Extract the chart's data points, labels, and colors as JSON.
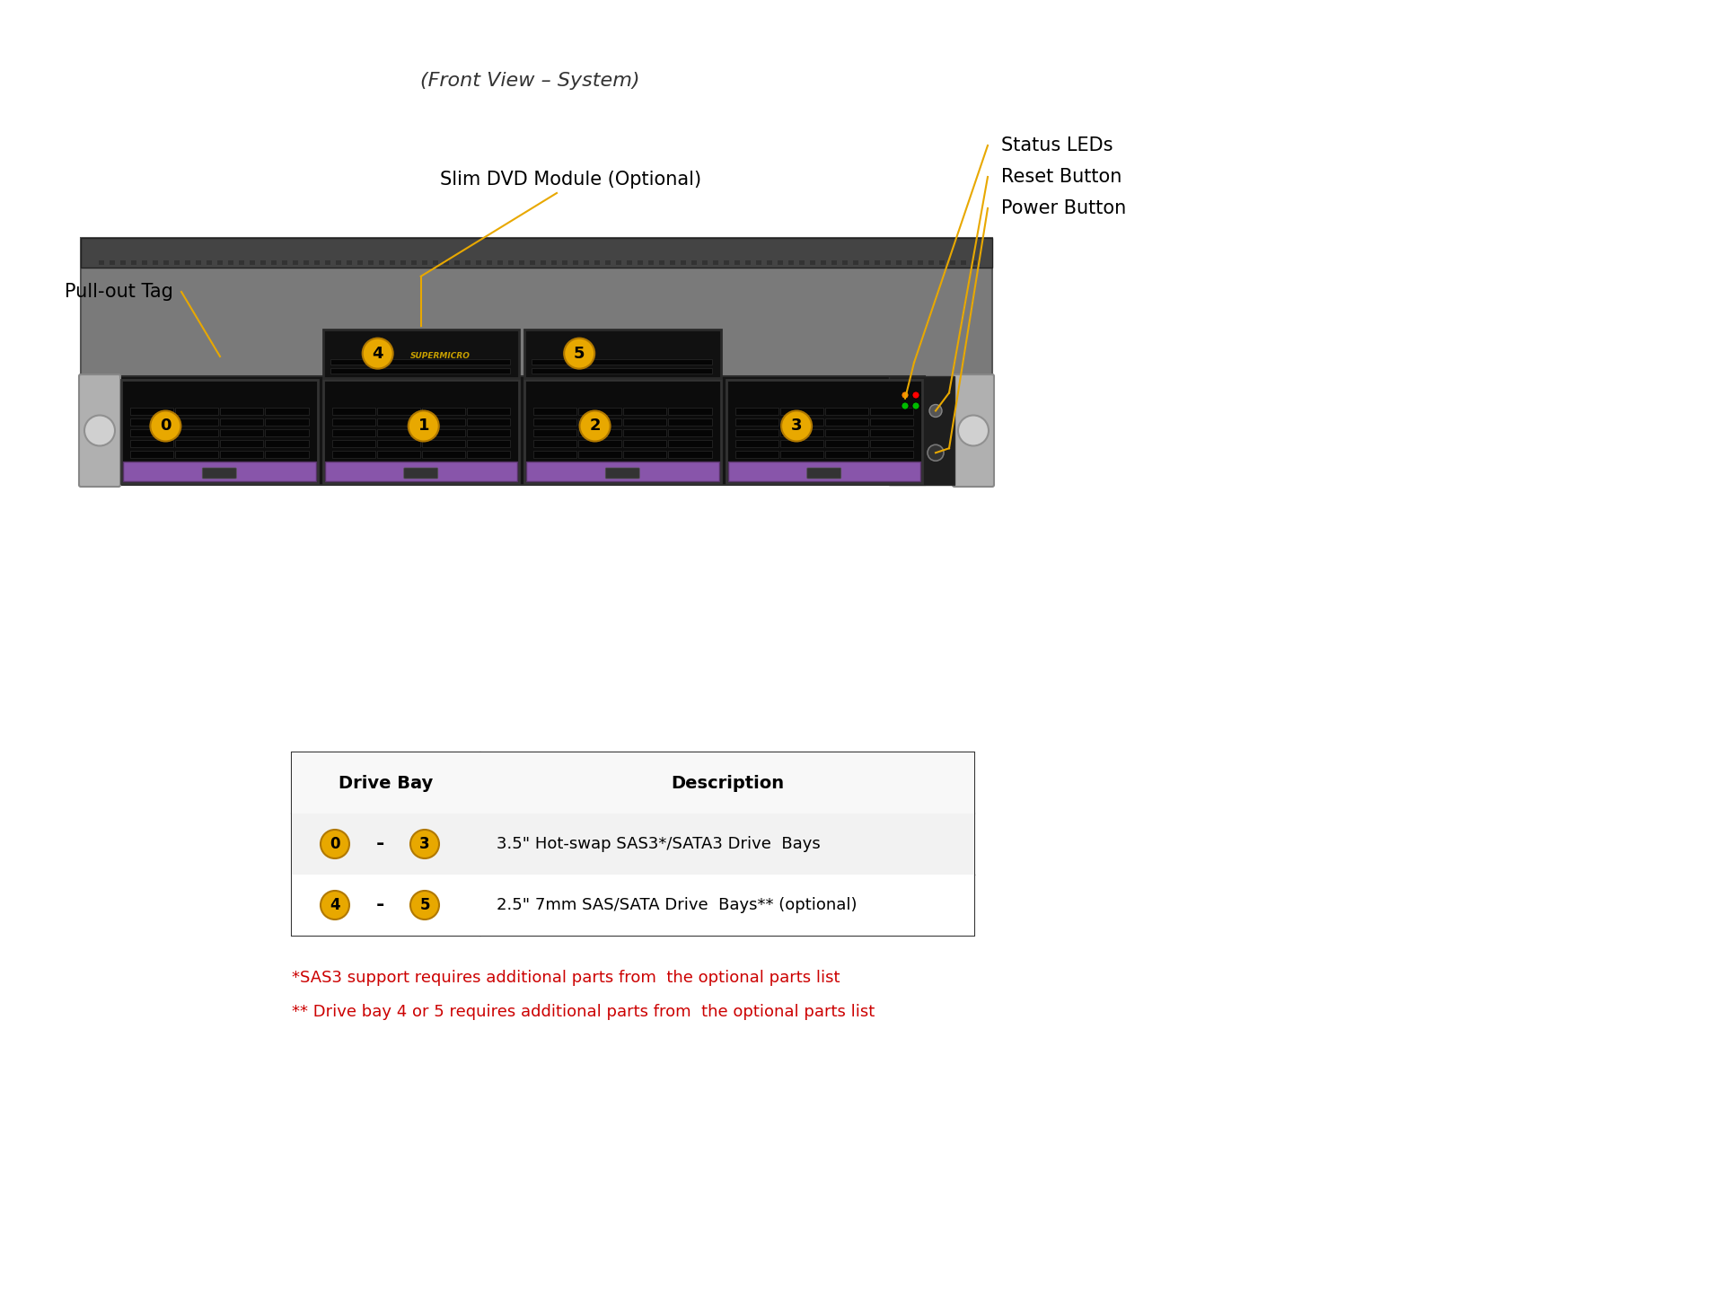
{
  "title": "(Front View – System)",
  "background_color": "#ffffff",
  "labels": {
    "slim_dvd": "Slim DVD Module (Optional)",
    "pull_out_tag": "Pull-out Tag",
    "status_leds": "Status LEDs",
    "reset_button": "Reset Button",
    "power_button": "Power Button"
  },
  "drive_numbers": [
    "0",
    "1",
    "2",
    "3",
    "4",
    "5"
  ],
  "badge_color": "#E8A800",
  "badge_text_color": "#000000",
  "line_color": "#E8A800",
  "annotation_color": "#000000",
  "table": {
    "col1_header": "Drive Bay",
    "col2_header": "Description",
    "rows": [
      {
        "bay_from": "0",
        "bay_to": "3",
        "description": "3.5\" Hot-swap SAS3*/SATA3 Drive  Bays"
      },
      {
        "bay_from": "4",
        "bay_to": "5",
        "description": "2.5\" 7mm SAS/SATA Drive  Bays** (optional)"
      }
    ]
  },
  "footnotes": [
    "*SAS3 support requires additional parts from  the optional parts list",
    "** Drive bay 4 or 5 requires additional parts from  the optional parts list"
  ],
  "footnote_color": "#cc0000"
}
